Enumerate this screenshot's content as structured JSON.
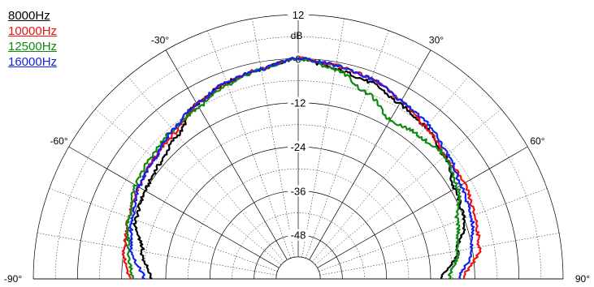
{
  "chart_data": {
    "type": "polar-line",
    "title": "",
    "radial_unit": "dB",
    "radial_ticks": [
      12,
      0,
      -12,
      -24,
      -36,
      -48
    ],
    "radial_range": [
      -60,
      12
    ],
    "angle_labels": [
      "-90°",
      "-60°",
      "-30°",
      "30°",
      "60°",
      "90°"
    ],
    "angle_range_deg": [
      -90,
      90
    ],
    "grid": true,
    "legend_position": "top-left",
    "series": [
      {
        "name": "8000Hz",
        "color": "#000000",
        "angles_deg": [
          -90,
          -80,
          -70,
          -60,
          -50,
          -40,
          -30,
          -20,
          -10,
          0,
          10,
          20,
          30,
          40,
          50,
          60,
          70,
          80,
          90
        ],
        "values_db": [
          -20,
          -17,
          -13,
          -12,
          -11,
          -9,
          -5,
          -3,
          -2,
          0,
          -2,
          -3,
          -5,
          -6,
          -8,
          -11,
          -12,
          -16,
          -21
        ]
      },
      {
        "name": "10000Hz",
        "color": "#ee1111",
        "angles_deg": [
          -90,
          -80,
          -70,
          -60,
          -50,
          -40,
          -30,
          -20,
          -10,
          0,
          10,
          20,
          30,
          40,
          50,
          60,
          70,
          80,
          90
        ],
        "values_db": [
          -14,
          -12,
          -11,
          -10,
          -9,
          -8,
          -5,
          -3,
          -2,
          0,
          -1,
          -2,
          -4,
          -6,
          -8,
          -8,
          -9,
          -10,
          -15
        ]
      },
      {
        "name": "12500Hz",
        "color": "#118811",
        "angles_deg": [
          -90,
          -80,
          -70,
          -60,
          -50,
          -40,
          -30,
          -20,
          -10,
          0,
          10,
          20,
          30,
          40,
          50,
          60,
          70,
          80,
          90
        ],
        "values_db": [
          -15,
          -13,
          -11,
          -9,
          -8,
          -7,
          -6,
          -4,
          -2,
          0,
          -2,
          -6,
          -10,
          -9,
          -8,
          -10,
          -14,
          -16,
          -19
        ]
      },
      {
        "name": "16000Hz",
        "color": "#1122ee",
        "angles_deg": [
          -90,
          -80,
          -70,
          -60,
          -50,
          -40,
          -30,
          -20,
          -10,
          0,
          10,
          20,
          30,
          40,
          50,
          60,
          70,
          80,
          90
        ],
        "values_db": [
          -18,
          -14,
          -12,
          -10,
          -9,
          -7,
          -5,
          -3,
          -2,
          0,
          -1,
          -2,
          -4,
          -5,
          -7,
          -9,
          -10,
          -12,
          -16
        ]
      }
    ]
  }
}
